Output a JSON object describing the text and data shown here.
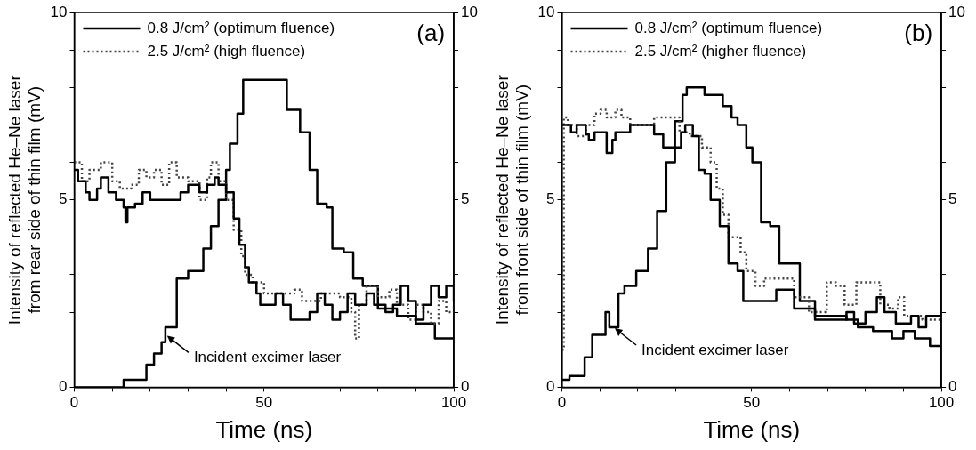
{
  "chart_data": [
    {
      "type": "step",
      "xlabel": "Time (ns)",
      "ylabel": "Intensity of reflected He–Ne laser\nfrom rear side of thin film (mV)",
      "legend": "top left",
      "grid": false,
      "marker": "none",
      "xlim": [
        0,
        100
      ],
      "xticks": [
        0,
        {
          "value": 10,
          "label": null
        },
        {
          "value": 20,
          "label": null
        },
        {
          "value": 30,
          "label": null
        },
        {
          "value": 40,
          "label": null
        },
        50,
        {
          "value": 60,
          "label": null
        },
        {
          "value": 70,
          "label": null
        },
        {
          "value": 80,
          "label": null
        },
        {
          "value": 90,
          "label": null
        },
        100
      ],
      "ylim": [
        0,
        10
      ],
      "yticks": [
        0,
        {
          "value": 1,
          "label": null
        },
        {
          "value": 2,
          "label": null
        },
        {
          "value": 3,
          "label": null
        },
        {
          "value": 4,
          "label": null
        },
        5,
        {
          "value": 6,
          "label": null
        },
        {
          "value": 7,
          "label": null
        },
        {
          "value": 8,
          "label": null
        },
        {
          "value": 9,
          "label": null
        },
        10
      ],
      "y2lim": [
        0,
        10
      ],
      "y2ticks": [
        0,
        {
          "value": 1,
          "label": null
        },
        {
          "value": 2,
          "label": null
        },
        {
          "value": 3,
          "label": null
        },
        {
          "value": 4,
          "label": null
        },
        5,
        {
          "value": 6,
          "label": null
        },
        {
          "value": 7,
          "label": null
        },
        {
          "value": 8,
          "label": null
        },
        {
          "value": 9,
          "label": null
        },
        10
      ],
      "annotations": [
        "(a)",
        {
          "text": "Incident excimer laser",
          "x": 24,
          "y": 1.4
        }
      ],
      "series": [
        {
          "name": "0.8 J/cm² (optimum fluence)",
          "color": "#000000",
          "line_style": "solid",
          "x": [
            0,
            1,
            3,
            4,
            6,
            7,
            9,
            11,
            13,
            13.5,
            14,
            16,
            18,
            20,
            25,
            28,
            30,
            33,
            35,
            37,
            38,
            40,
            42,
            43.5,
            45,
            46,
            48,
            49,
            52,
            53,
            55,
            57,
            60,
            62,
            64,
            66,
            68,
            70,
            72,
            74,
            77,
            79,
            82,
            84,
            86,
            88,
            90,
            92,
            94,
            96,
            98,
            100
          ],
          "values": [
            5.8,
            5.5,
            5.2,
            5.0,
            5.3,
            5.6,
            5.2,
            5.0,
            4.8,
            4.4,
            4.8,
            4.9,
            5.2,
            5.0,
            5.0,
            5.2,
            5.4,
            5.2,
            5.4,
            5.6,
            5.4,
            5.2,
            4.5,
            3.8,
            3.2,
            2.8,
            2.5,
            2.2,
            2.2,
            2.5,
            2.2,
            1.8,
            1.8,
            2.0,
            2.5,
            2.2,
            1.8,
            2.0,
            2.5,
            2.2,
            2.5,
            2.2,
            2.0,
            2.2,
            2.7,
            2.3,
            1.8,
            2.2,
            2.7,
            2.4,
            2.7,
            2.3
          ]
        },
        {
          "name": "2.5 J/cm² (high fluence)",
          "color": "#444444",
          "line_style": "dotted",
          "x": [
            0,
            2,
            4,
            7,
            10,
            12,
            15,
            17,
            19,
            21,
            23,
            25,
            27,
            30,
            33,
            35,
            36,
            38,
            40,
            42,
            44,
            45,
            47,
            50,
            55,
            58,
            60,
            65,
            70,
            73,
            74,
            75,
            77,
            80,
            83,
            85,
            88,
            90,
            92,
            94,
            96,
            98,
            100
          ],
          "values": [
            6.0,
            5.5,
            5.8,
            6.0,
            5.5,
            5.3,
            5.4,
            5.8,
            5.6,
            5.8,
            5.4,
            6.0,
            5.6,
            5.5,
            5.0,
            5.6,
            6.0,
            5.5,
            5.0,
            4.2,
            3.5,
            3.0,
            2.8,
            2.5,
            2.5,
            2.6,
            2.3,
            2.5,
            2.4,
            2.0,
            1.3,
            2.2,
            2.7,
            2.4,
            2.6,
            2.2,
            1.8,
            2.2,
            2.0,
            1.7,
            2.3,
            2.0,
            2.2
          ]
        },
        {
          "color": "#000000",
          "line_style": "solid",
          "x": [
            0,
            13,
            18,
            19,
            21,
            23,
            24,
            27,
            30,
            34,
            36,
            38,
            40,
            41,
            43,
            44.5,
            53,
            56,
            59.5,
            62,
            64,
            66.5,
            68,
            71,
            73.5,
            76,
            80,
            85,
            90,
            93,
            95,
            100
          ],
          "values": [
            0,
            0.2,
            0.2,
            0.6,
            0.9,
            1.2,
            1.6,
            2.9,
            3.1,
            3.7,
            4.3,
            5.0,
            5.8,
            6.5,
            7.3,
            8.2,
            8.2,
            7.4,
            6.8,
            5.8,
            4.9,
            4.8,
            3.7,
            3.6,
            2.9,
            2.7,
            2.1,
            1.9,
            1.7,
            1.7,
            1.3,
            1.3
          ]
        }
      ]
    },
    {
      "type": "step",
      "xlabel": "Time (ns)",
      "ylabel": "Intensity of reflected He–Ne laser\nfrom front side of thin film (mV)",
      "legend": "top left",
      "grid": false,
      "marker": "none",
      "xlim": [
        0,
        100
      ],
      "xticks": [
        0,
        {
          "value": 10,
          "label": null
        },
        {
          "value": 20,
          "label": null
        },
        {
          "value": 30,
          "label": null
        },
        {
          "value": 40,
          "label": null
        },
        50,
        {
          "value": 60,
          "label": null
        },
        {
          "value": 70,
          "label": null
        },
        {
          "value": 80,
          "label": null
        },
        {
          "value": 90,
          "label": null
        },
        100
      ],
      "ylim": [
        0,
        10
      ],
      "yticks": [
        0,
        {
          "value": 1,
          "label": null
        },
        {
          "value": 2,
          "label": null
        },
        {
          "value": 3,
          "label": null
        },
        {
          "value": 4,
          "label": null
        },
        5,
        {
          "value": 6,
          "label": null
        },
        {
          "value": 7,
          "label": null
        },
        {
          "value": 8,
          "label": null
        },
        {
          "value": 9,
          "label": null
        },
        10
      ],
      "y2lim": [
        0,
        10
      ],
      "y2ticks": [
        0,
        {
          "value": 1,
          "label": null
        },
        {
          "value": 2,
          "label": null
        },
        {
          "value": 3,
          "label": null
        },
        {
          "value": 4,
          "label": null
        },
        5,
        {
          "value": 6,
          "label": null
        },
        {
          "value": 7,
          "label": null
        },
        {
          "value": 8,
          "label": null
        },
        {
          "value": 9,
          "label": null
        },
        10
      ],
      "annotations": [
        "(b)",
        {
          "text": "Incident excimer laser",
          "x": 13.5,
          "y": 1.6
        }
      ],
      "series": [
        {
          "name": "0.8 J/cm² (optimum fluence)",
          "color": "#000000",
          "line_style": "solid",
          "x": [
            0,
            2.4,
            3.9,
            6.3,
            7.1,
            8.6,
            11.8,
            13.3,
            14.1,
            18,
            22.7,
            24.3,
            26.7,
            29.4,
            31.4,
            32.5,
            33.7,
            34.5,
            36.1,
            37.6,
            39.2,
            41.6,
            43.9,
            46.3,
            47.8,
            54.9,
            56.5,
            58.8,
            61.2,
            66.7,
            70,
            75,
            77,
            80,
            83,
            85,
            88,
            92,
            94,
            96,
            100
          ],
          "values": [
            7.0,
            6.8,
            7.0,
            6.75,
            6.6,
            6.8,
            6.25,
            6.6,
            6.8,
            7.0,
            7.0,
            6.75,
            6.4,
            6.4,
            6.8,
            7.0,
            7.0,
            6.7,
            5.8,
            5.7,
            5.0,
            4.3,
            3.3,
            3.1,
            2.3,
            2.3,
            2.6,
            2.6,
            2.1,
            1.8,
            1.8,
            2.0,
            1.7,
            2.0,
            2.4,
            2.0,
            1.7,
            1.9,
            1.6,
            1.9,
            2.0
          ]
        },
        {
          "name": "2.5 J/cm² (higher fluence)",
          "color": "#444444",
          "line_style": "dotted",
          "x": [
            0,
            0.5,
            1.6,
            3.9,
            6.3,
            8.6,
            10.2,
            11.8,
            14.1,
            15.7,
            18,
            22.7,
            24.3,
            29,
            31,
            33.7,
            36.9,
            39.2,
            40.8,
            42.4,
            43.9,
            47.1,
            48.6,
            51,
            53.3,
            58.8,
            61.2,
            65.1,
            69.8,
            72.2,
            74.5,
            77.6,
            80.8,
            83.9,
            86.3,
            88.6,
            90.2,
            95,
            100
          ],
          "values": [
            1.0,
            7.2,
            7.0,
            6.7,
            7.0,
            7.3,
            7.4,
            7.2,
            7.4,
            7.2,
            7.0,
            7.0,
            7.2,
            7.2,
            6.8,
            6.7,
            6.4,
            6.0,
            5.3,
            4.6,
            4.0,
            3.6,
            3.1,
            2.7,
            2.9,
            2.9,
            2.4,
            2.0,
            2.8,
            2.7,
            2.2,
            2.8,
            2.8,
            2.2,
            2.1,
            2.4,
            1.9,
            1.8,
            1.9
          ]
        },
        {
          "color": "#000000",
          "line_style": "solid",
          "x": [
            0,
            2,
            6,
            8,
            11.5,
            12.5,
            14.9,
            16.5,
            19.6,
            22.7,
            25.1,
            27.5,
            29.8,
            31.8,
            32.9,
            37.3,
            37.6,
            41.6,
            42.4,
            44.7,
            46.3,
            48.6,
            50.2,
            52.5,
            54.9,
            57.3,
            61.2,
            62.7,
            66.7,
            75,
            78,
            82,
            87,
            90,
            93,
            97,
            100
          ],
          "values": [
            0.2,
            0.3,
            0.8,
            1.4,
            2.0,
            1.6,
            2.5,
            2.7,
            3.1,
            3.7,
            4.7,
            6.0,
            7.1,
            7.8,
            8.0,
            8.0,
            7.8,
            7.8,
            7.5,
            7.2,
            7.0,
            6.4,
            6.0,
            4.4,
            4.3,
            3.3,
            3.3,
            2.3,
            1.9,
            1.8,
            1.6,
            1.5,
            1.3,
            1.5,
            1.3,
            1.1,
            1.0
          ]
        }
      ]
    }
  ]
}
